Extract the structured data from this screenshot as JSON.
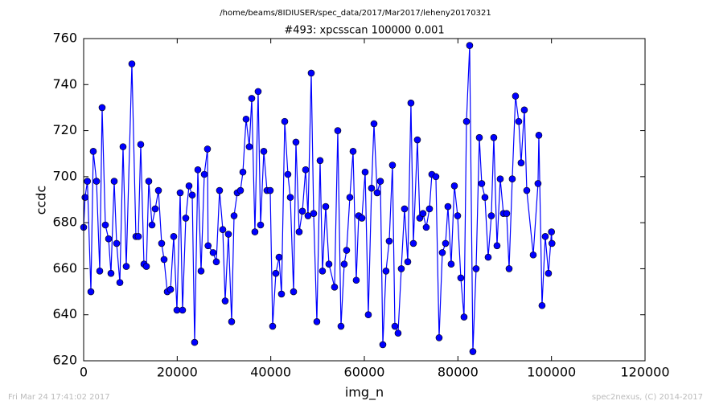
{
  "chart_data": {
    "type": "line",
    "title": "/home/beams/8IDIUSER/spec_data/2017/Mar2017/leheny20170321",
    "subtitle": "#493: xpcsscan 100000 0.001",
    "x_label": "img_n",
    "y_label": "ccdc",
    "color": "#0000ff",
    "marker": "circle",
    "x": [
      0,
      300,
      800,
      1550,
      2060,
      2750,
      3440,
      3950,
      4640,
      5330,
      5840,
      6530,
      7050,
      7740,
      8420,
      9110,
      10310,
      11170,
      11690,
      12200,
      12890,
      13410,
      13920,
      14610,
      15300,
      15990,
      16670,
      17190,
      17880,
      18570,
      19250,
      19940,
      20630,
      21140,
      21830,
      22520,
      23210,
      23720,
      24410,
      25100,
      25790,
      26470,
      26600,
      27680,
      28360,
      29050,
      29740,
      30250,
      30940,
      31630,
      32150,
      32830,
      33520,
      34040,
      34720,
      35410,
      35930,
      36610,
      37300,
      37820,
      38510,
      39190,
      39880,
      40400,
      41080,
      41770,
      42290,
      42980,
      43660,
      44180,
      44870,
      45380,
      46070,
      46760,
      47440,
      47960,
      48650,
      49160,
      49850,
      50540,
      51050,
      51740,
      52430,
      53630,
      54320,
      55010,
      55700,
      56210,
      56900,
      57590,
      58270,
      58790,
      59480,
      60170,
      60850,
      61540,
      62060,
      62740,
      63430,
      63950,
      64630,
      65320,
      66010,
      66530,
      67210,
      67900,
      68590,
      69280,
      69960,
      70480,
      71340,
      71850,
      72540,
      73230,
      73920,
      74430,
      75290,
      75980,
      76670,
      77360,
      77870,
      78560,
      79250,
      79940,
      80620,
      81310,
      81830,
      82510,
      83200,
      83890,
      84580,
      85090,
      85780,
      86470,
      87150,
      87670,
      88360,
      89050,
      89730,
      90420,
      90940,
      91620,
      92310,
      93000,
      93510,
      94200,
      94720,
      96100,
      97120,
      97300,
      97980,
      98670,
      99360,
      100000,
      100100
    ],
    "y": [
      678,
      691,
      698,
      650,
      711,
      698,
      659,
      730,
      679,
      673,
      658,
      698,
      671,
      654,
      713,
      661,
      749,
      674,
      674,
      714,
      662,
      661,
      698,
      679,
      686,
      694,
      671,
      664,
      650,
      651,
      674,
      642,
      693,
      642,
      682,
      696,
      692,
      628,
      703,
      659,
      701,
      712,
      670,
      667,
      663,
      694,
      677,
      646,
      675,
      637,
      683,
      693,
      694,
      702,
      725,
      713,
      734,
      676,
      737,
      679,
      711,
      694,
      694,
      635,
      658,
      665,
      649,
      724,
      701,
      691,
      650,
      715,
      676,
      685,
      703,
      683,
      745,
      684,
      637,
      707,
      659,
      687,
      662,
      652,
      720,
      635,
      662,
      668,
      691,
      711,
      655,
      683,
      682,
      702,
      640,
      695,
      723,
      693,
      698,
      627,
      659,
      672,
      705,
      635,
      632,
      660,
      686,
      663,
      732,
      671,
      716,
      682,
      684,
      678,
      686,
      701,
      700,
      630,
      667,
      671,
      687,
      662,
      696,
      683,
      656,
      639,
      724,
      757,
      624,
      660,
      717,
      697,
      691,
      665,
      683,
      717,
      670,
      699,
      684,
      684,
      660,
      699,
      735,
      724,
      706,
      729,
      694,
      666,
      697,
      718,
      644,
      674,
      658,
      676,
      671
    ],
    "xlim": [
      0,
      120000
    ],
    "ylim": [
      620,
      760
    ],
    "xticks": [
      0,
      20000,
      40000,
      60000,
      80000,
      100000,
      120000
    ],
    "yticks": [
      620,
      640,
      660,
      680,
      700,
      720,
      740,
      760
    ]
  },
  "footer": {
    "left": "Fri Mar 24 17:41:02 2017",
    "right": "spec2nexus, (C) 2014-2017"
  }
}
